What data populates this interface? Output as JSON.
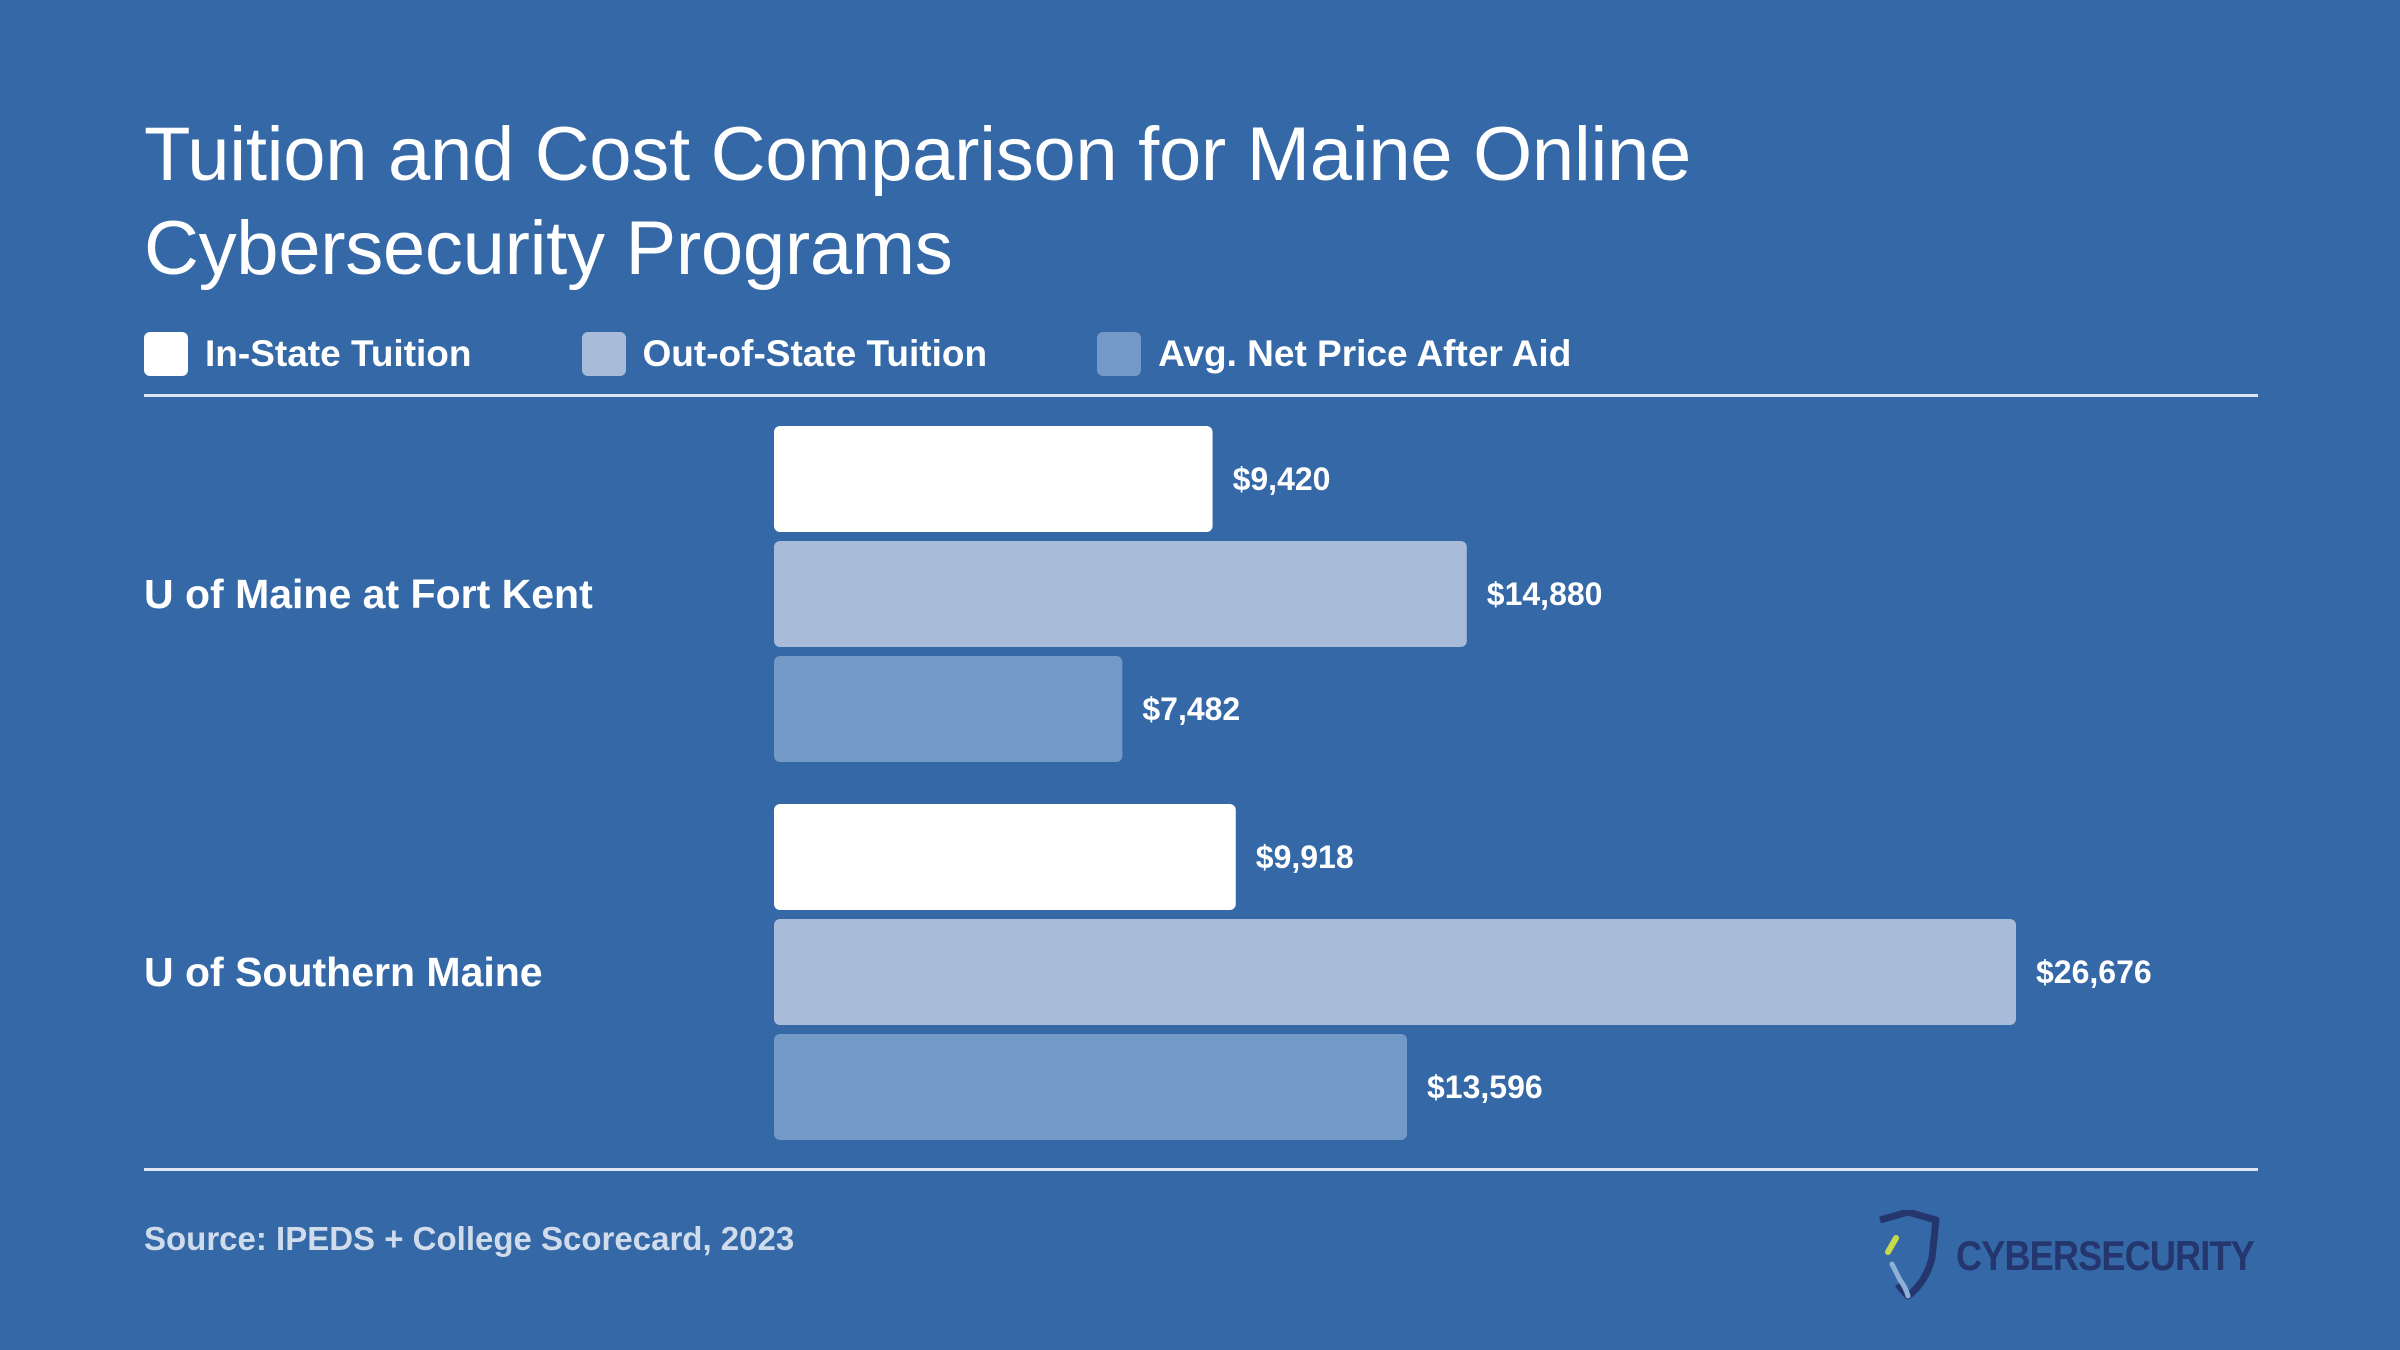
{
  "chart_data": {
    "type": "bar",
    "orientation": "horizontal",
    "title": "Tuition and Cost Comparison for Maine Online Cybersecurity Programs",
    "categories": [
      "U of Maine at Fort Kent",
      "U of Southern Maine"
    ],
    "series": [
      {
        "name": "In-State Tuition",
        "color": "#ffffff",
        "values": [
          9420,
          9918
        ],
        "labels": [
          "$9,420",
          "$9,918"
        ]
      },
      {
        "name": "Out-of-State Tuition",
        "color": "#a8bbd8",
        "values": [
          14880,
          26676
        ],
        "labels": [
          "$14,880",
          "$26,676"
        ]
      },
      {
        "name": "Avg. Net Price After Aid",
        "color": "#7399c6",
        "values": [
          7482,
          13596
        ],
        "labels": [
          "$7,482",
          "$13,596"
        ]
      }
    ],
    "xlim": [
      0,
      30000
    ],
    "legend": "top-left",
    "grid": false
  },
  "source": "Source: IPEDS + College Scorecard, 2023",
  "logo": {
    "text": "CYBERSECURITY",
    "icon": "shield-icon"
  },
  "colors": {
    "background": "#3468a6",
    "rule": "#dde6f1",
    "logo_text": "#24366d"
  }
}
